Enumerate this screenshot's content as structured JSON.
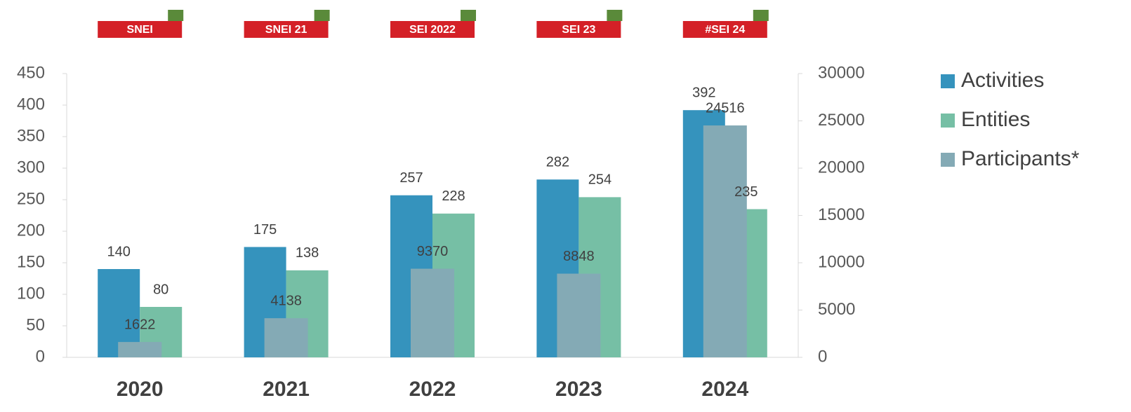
{
  "logos": [
    "SNEI",
    "SNEI 21",
    "SEI 2022",
    "SEI 23",
    "#SEI 24"
  ],
  "chart_data": {
    "type": "bar",
    "categories": [
      "2020",
      "2021",
      "2022",
      "2023",
      "2024"
    ],
    "series": [
      {
        "name": "Activities",
        "color": "#3593bd",
        "values": [
          140,
          175,
          257,
          282,
          392
        ]
      },
      {
        "name": "Entities",
        "color": "#76bfa5",
        "values": [
          80,
          138,
          228,
          254,
          235
        ]
      },
      {
        "name": "Participants*",
        "color": "#84aab5",
        "axis": "y2",
        "values": [
          1622,
          4138,
          9370,
          8848,
          24516
        ]
      }
    ],
    "ylim": [
      0,
      450
    ],
    "yticks": [
      0,
      50,
      100,
      150,
      200,
      250,
      300,
      350,
      400,
      450
    ],
    "y2lim": [
      0,
      30000
    ],
    "y2ticks": [
      0,
      5000,
      10000,
      15000,
      20000,
      25000,
      30000
    ],
    "legend": "right"
  }
}
